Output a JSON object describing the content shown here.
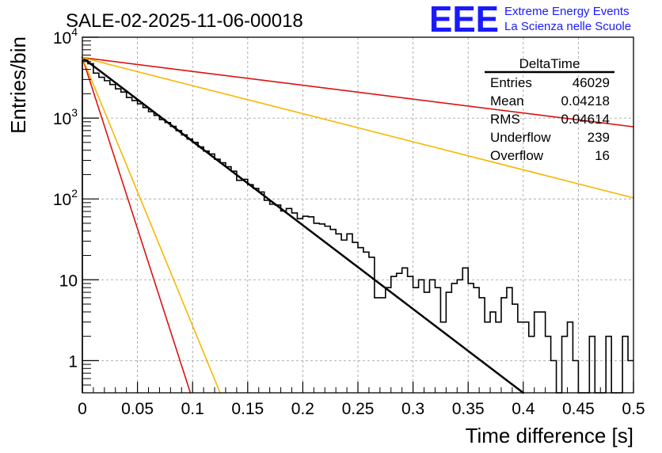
{
  "chart_data": {
    "type": "histogram",
    "title": "SALE-02-2025-11-06-00018",
    "xlabel": "Time difference [s]",
    "ylabel": "Entries/bin",
    "xlim": [
      0,
      0.5
    ],
    "ylim": [
      0.4,
      10000
    ],
    "yscale": "log",
    "grid": true,
    "x_ticks": [
      {
        "value": 0,
        "label": "0"
      },
      {
        "value": 0.05,
        "label": "0.05"
      },
      {
        "value": 0.1,
        "label": "0.1"
      },
      {
        "value": 0.15,
        "label": "0.15"
      },
      {
        "value": 0.2,
        "label": "0.2"
      },
      {
        "value": 0.25,
        "label": "0.25"
      },
      {
        "value": 0.3,
        "label": "0.3"
      },
      {
        "value": 0.35,
        "label": "0.35"
      },
      {
        "value": 0.4,
        "label": "0.4"
      },
      {
        "value": 0.45,
        "label": "0.45"
      },
      {
        "value": 0.5,
        "label": "0.5"
      }
    ],
    "y_ticks": [
      {
        "value": 1,
        "base": "1",
        "exp": ""
      },
      {
        "value": 10,
        "base": "10",
        "exp": ""
      },
      {
        "value": 100,
        "base": "10",
        "exp": "2"
      },
      {
        "value": 1000,
        "base": "10",
        "exp": "3"
      },
      {
        "value": 10000,
        "base": "10",
        "exp": "4"
      }
    ],
    "histogram": {
      "name": "DeltaTime",
      "color": "#000000",
      "bin_width": 0.005,
      "bin_start": 0,
      "values": [
        5200,
        4700,
        3600,
        3200,
        2900,
        2600,
        2300,
        2100,
        1800,
        1650,
        1500,
        1350,
        1200,
        1080,
        960,
        880,
        790,
        700,
        620,
        550,
        500,
        440,
        390,
        360,
        310,
        280,
        250,
        220,
        170,
        175,
        150,
        135,
        122,
        96,
        86,
        84,
        71,
        76,
        67,
        57,
        61,
        60,
        50,
        49,
        46,
        42,
        37,
        31,
        37,
        29,
        25,
        22,
        19,
        6,
        6,
        8,
        11,
        12,
        14,
        11,
        8,
        10,
        7,
        10,
        8,
        3,
        7,
        9,
        10,
        14,
        9,
        8,
        6,
        3,
        4,
        3,
        6,
        8,
        5,
        3,
        3,
        2,
        4,
        4,
        2,
        1,
        0.4,
        2,
        3,
        1,
        0.4,
        0.4,
        2,
        0.4,
        0.4,
        2,
        0.4,
        0.4,
        2,
        1
      ]
    },
    "series": [
      {
        "name": "fit",
        "color": "#000000",
        "x": [
          0,
          0.4
        ],
        "y": [
          5600,
          0.4
        ],
        "width": 2.5
      },
      {
        "name": "rate-upper-red",
        "color": "#dd1111",
        "x": [
          0,
          0.5
        ],
        "y": [
          5600,
          780
        ],
        "width": 1.6
      },
      {
        "name": "rate-upper-orange",
        "color": "#f5b800",
        "x": [
          0,
          0.5
        ],
        "y": [
          5600,
          103
        ],
        "width": 1.6
      },
      {
        "name": "rate-lower-red",
        "color": "#dd1111",
        "x": [
          0,
          0.098
        ],
        "y": [
          5600,
          0.4
        ],
        "width": 1.6
      },
      {
        "name": "rate-lower-orange",
        "color": "#f5b800",
        "x": [
          0,
          0.125
        ],
        "y": [
          5600,
          0.4
        ],
        "width": 1.6
      }
    ],
    "stats": {
      "title": "DeltaTime",
      "rows": [
        {
          "label": "Entries",
          "value": "46029"
        },
        {
          "label": "Mean",
          "value": "0.04218"
        },
        {
          "label": "RMS",
          "value": "0.04614"
        },
        {
          "label": "Underflow",
          "value": "239"
        },
        {
          "label": "Overflow",
          "value": "16"
        }
      ]
    }
  },
  "logo": {
    "text": "EEE",
    "line1": "Extreme Energy Events",
    "line2": "La Scienza nelle Scuole",
    "color": "#1a1aff"
  }
}
